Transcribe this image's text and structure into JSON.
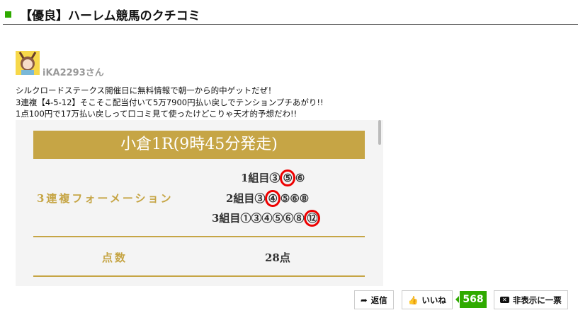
{
  "header": {
    "title": "【優良】ハーレム競馬のクチコミ",
    "accent": "#2faa00"
  },
  "review": {
    "username": "iKA2293さん",
    "lines": [
      "シルクロードステークス開催日に無料情報で朝一から的中ゲットだぜ！",
      "3連複【4-5-12】そこそこ配当付いて5万7900円払い戻しでテンションプチあがり!!",
      "1点100円で17万払い戻しって口コミ見て使ったけどこりゃ天才的予想だわ!!"
    ],
    "image": {
      "banner": "小倉1R(9時45分発走)",
      "bet_type": "3連複フォーメーション",
      "groups": [
        {
          "label": "1組目",
          "pre": "③",
          "mark": "⑤",
          "post": "⑥"
        },
        {
          "label": "2組目",
          "pre": "③",
          "mark": "④",
          "post": "⑤⑥⑧"
        },
        {
          "label": "3組目",
          "pre": "①③④⑤⑥⑧",
          "mark": "⑫",
          "post": ""
        }
      ],
      "points_label": "点数",
      "points_value": "28点",
      "gold": "#c6a545"
    }
  },
  "actions": {
    "reply": "返信",
    "like": "いいね",
    "like_count": "568",
    "hide": "非表示に一票"
  }
}
